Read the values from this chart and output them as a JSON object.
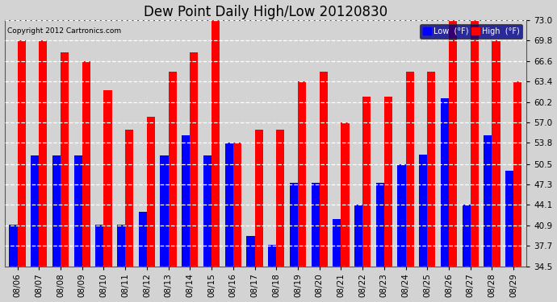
{
  "title": "Dew Point Daily High/Low 20120830",
  "copyright": "Copyright 2012 Cartronics.com",
  "dates": [
    "08/06",
    "08/07",
    "08/08",
    "08/09",
    "08/10",
    "08/11",
    "08/12",
    "08/13",
    "08/14",
    "08/15",
    "08/16",
    "08/17",
    "08/18",
    "08/19",
    "08/20",
    "08/21",
    "08/22",
    "08/23",
    "08/24",
    "08/25",
    "08/26",
    "08/27",
    "08/28",
    "08/29"
  ],
  "high_vals": [
    69.8,
    69.8,
    68.0,
    66.6,
    62.0,
    55.9,
    57.9,
    65.0,
    68.0,
    73.0,
    53.8,
    55.9,
    55.9,
    63.4,
    65.0,
    57.0,
    61.0,
    61.0,
    65.0,
    65.0,
    73.0,
    73.0,
    69.8,
    63.4
  ],
  "low_vals": [
    41.0,
    51.8,
    51.8,
    51.8,
    41.0,
    41.0,
    43.0,
    51.8,
    55.0,
    51.8,
    53.8,
    39.2,
    37.9,
    47.5,
    47.5,
    41.9,
    44.1,
    47.5,
    50.5,
    52.0,
    60.8,
    44.1,
    55.0,
    49.5
  ],
  "high_color": "#ff0000",
  "low_color": "#0000ff",
  "bg_color": "#d3d3d3",
  "plot_bg_color": "#d3d3d3",
  "grid_color": "#ffffff",
  "ylim_min": 34.5,
  "ylim_max": 73.0,
  "yticks": [
    34.5,
    37.7,
    40.9,
    44.1,
    47.3,
    50.5,
    53.8,
    57.0,
    60.2,
    63.4,
    66.6,
    69.8,
    73.0
  ],
  "bar_width": 0.38,
  "title_fontsize": 12,
  "tick_fontsize": 7.5,
  "legend_low_label": "Low  (°F)",
  "legend_high_label": "High  (°F)"
}
